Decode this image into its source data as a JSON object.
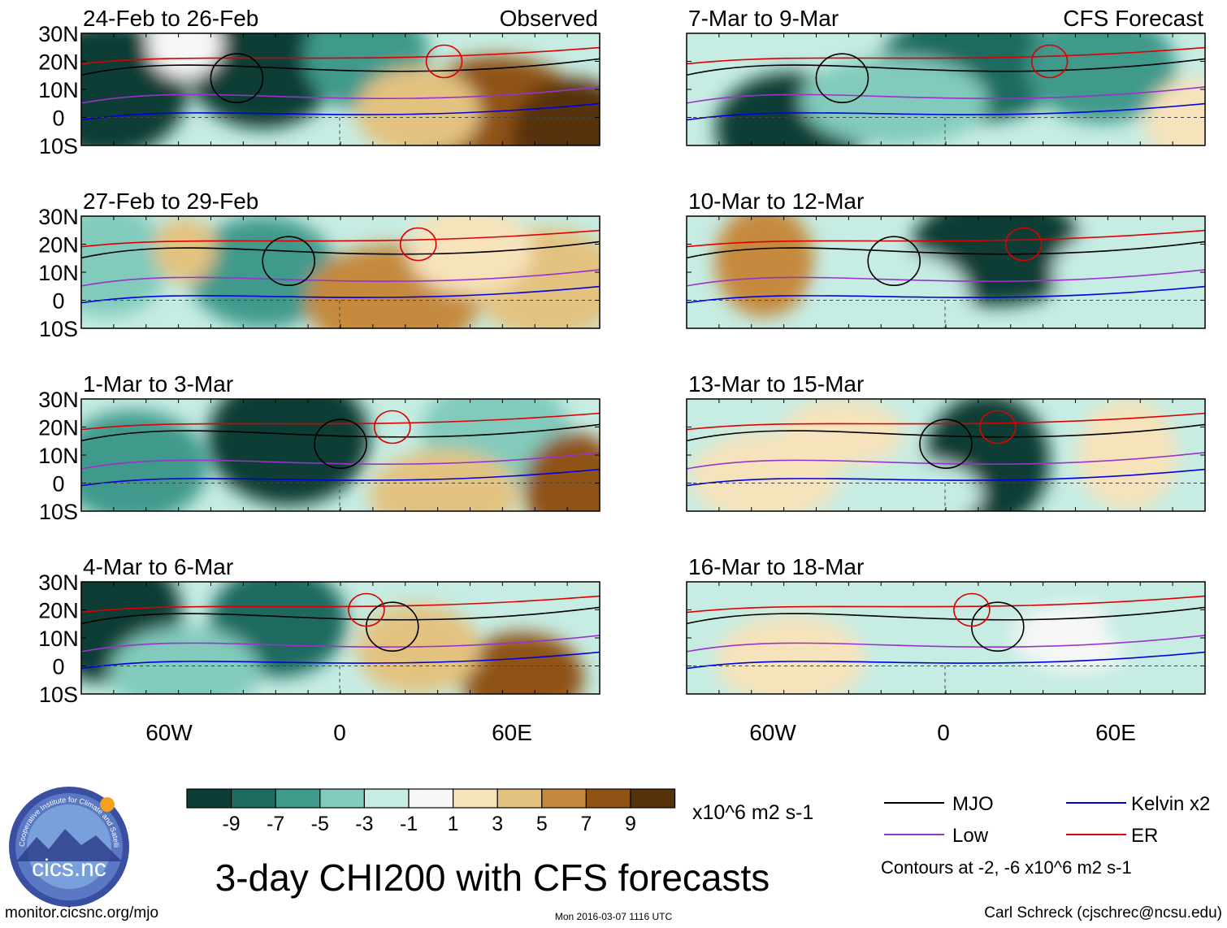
{
  "chart_data": {
    "type": "heatmap",
    "title": "3-day CHI200 with CFS forecasts",
    "observed_label": "Observed",
    "forecast_label": "CFS Forecast",
    "units": "x10^6 m2 s-1",
    "lat_ticks": [
      "30N",
      "20N",
      "10N",
      "0",
      "10S"
    ],
    "lon_ticks": [
      "60W",
      "0",
      "60E"
    ],
    "observed_panels": [
      "24-Feb to 26-Feb",
      "27-Feb to 29-Feb",
      "1-Mar to 3-Mar",
      "4-Mar to 6-Mar"
    ],
    "forecast_panels": [
      "7-Mar to 9-Mar",
      "10-Mar to 12-Mar",
      "13-Mar to 15-Mar",
      "16-Mar to 18-Mar"
    ],
    "colorbar": {
      "labels": [
        "-9",
        "-7",
        "-5",
        "-3",
        "-1",
        "1",
        "3",
        "5",
        "7",
        "9"
      ],
      "colors": [
        "#0c3d36",
        "#1d6b61",
        "#3f9a8c",
        "#82cbbc",
        "#c6ece3",
        "#f7f7f7",
        "#f6e3bb",
        "#e3c280",
        "#c58a3d",
        "#8f5316",
        "#573208"
      ]
    },
    "legend": {
      "mjo": "MJO",
      "kelvin": "Kelvin x2",
      "low": "Low",
      "er": "ER",
      "contours": "Contours at -2, -6 x10^6 m2 s-1",
      "colors": {
        "mjo": "#000000",
        "kelvin": "#0000dd",
        "low": "#9933cc",
        "er": "#dd0000"
      }
    }
  },
  "footer": {
    "left": "monitor.cicsnc.org/mjo",
    "center": "Mon 2016-03-07 1116 UTC",
    "right": "Carl Schreck (cjschrec@ncsu.edu)"
  },
  "logo": {
    "text": "cics.nc",
    "ring_text": "Cooperative Institute for Climate and Satellites"
  }
}
